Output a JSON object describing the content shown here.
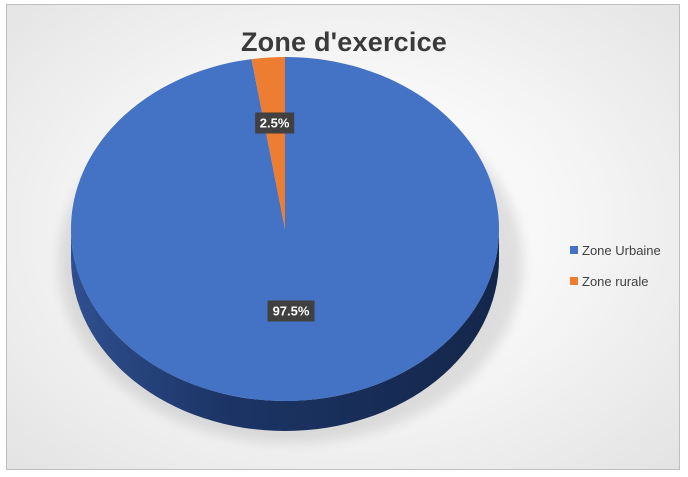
{
  "chart_data": {
    "type": "pie",
    "title": "Zone d'exercice",
    "categories": [
      "Zone Urbaine",
      "Zone rurale"
    ],
    "values": [
      97.5,
      2.5
    ],
    "data_labels": [
      "97.5%",
      "2.5%"
    ],
    "colors": [
      "#4472c4",
      "#ed7d31"
    ],
    "side_colors": [
      "#1f3864",
      "#843c0c"
    ],
    "legend_position": "right",
    "style": "3d"
  }
}
